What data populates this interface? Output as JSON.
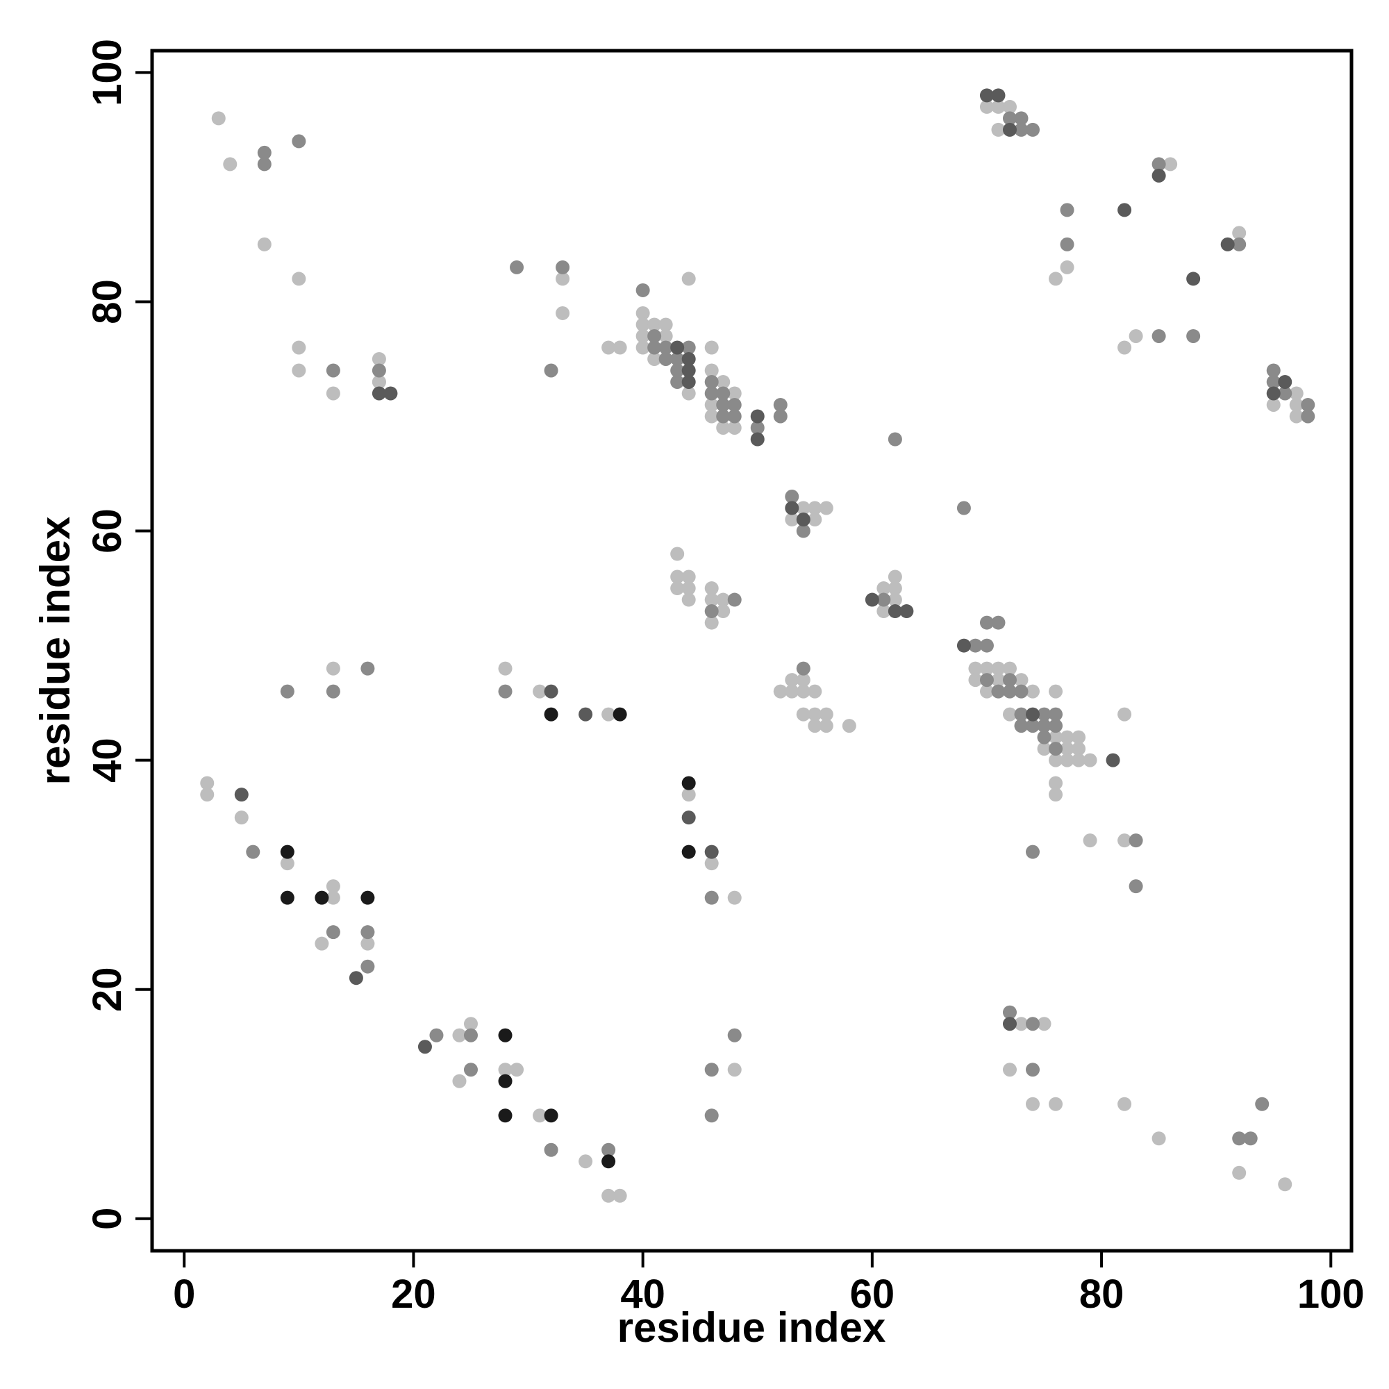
{
  "chart_data": {
    "type": "scatter",
    "x_label": "residue index",
    "y_label": "residue index",
    "xlim": [
      -2.8,
      101.8
    ],
    "ylim": [
      -2.8,
      101.9
    ],
    "xticks": [
      0,
      20,
      40,
      60,
      80,
      100
    ],
    "yticks": [
      0,
      20,
      40,
      60,
      80,
      100
    ],
    "series": [
      {
        "color": "#bdbdbd",
        "x": [
          3,
          4,
          7,
          10,
          10,
          10,
          13,
          17,
          17,
          33,
          33,
          37,
          38,
          44,
          40,
          40,
          41,
          42,
          40,
          42,
          40,
          41,
          44,
          46,
          46,
          47,
          48,
          46,
          46,
          47,
          48,
          54,
          55,
          56,
          53,
          55,
          43,
          43,
          44,
          43,
          44,
          44,
          46,
          46,
          47,
          47,
          46,
          61,
          62,
          62,
          62,
          61,
          69,
          70,
          71,
          72,
          69,
          71,
          73,
          70,
          74,
          76,
          72,
          76,
          77,
          78,
          75,
          77,
          78,
          76,
          77,
          78,
          79,
          82,
          76,
          76,
          79,
          82,
          52,
          53,
          53,
          54,
          54,
          55,
          54,
          55,
          56,
          55,
          56,
          58,
          70,
          71,
          72,
          71,
          86,
          92,
          77,
          76,
          82,
          83,
          97,
          95,
          97,
          97,
          13,
          28,
          31,
          37,
          2,
          2,
          5,
          9,
          13,
          13,
          17,
          12,
          16,
          44,
          46,
          48,
          24,
          25,
          24,
          28,
          29,
          31,
          35,
          37,
          38,
          48,
          73,
          75,
          72,
          74,
          76,
          82,
          85,
          92,
          96
        ],
        "y": [
          96,
          92,
          85,
          82,
          76,
          74,
          72,
          75,
          73,
          82,
          79,
          76,
          76,
          82,
          79,
          78,
          78,
          78,
          77,
          77,
          76,
          75,
          72,
          76,
          74,
          73,
          72,
          71,
          70,
          69,
          69,
          62,
          62,
          62,
          61,
          61,
          58,
          56,
          56,
          55,
          55,
          54,
          55,
          54,
          54,
          53,
          52,
          55,
          56,
          55,
          54,
          53,
          48,
          48,
          48,
          48,
          47,
          47,
          47,
          46,
          46,
          46,
          44,
          42,
          42,
          42,
          41,
          41,
          41,
          40,
          40,
          40,
          40,
          44,
          38,
          37,
          33,
          33,
          46,
          47,
          46,
          47,
          46,
          46,
          44,
          44,
          44,
          43,
          43,
          43,
          97,
          97,
          97,
          95,
          92,
          86,
          83,
          82,
          76,
          77,
          72,
          71,
          71,
          70,
          48,
          48,
          46,
          44,
          38,
          37,
          35,
          31,
          29,
          28,
          73,
          24,
          24,
          37,
          31,
          28,
          16,
          17,
          12,
          13,
          13,
          9,
          5,
          2,
          2,
          13,
          17,
          17,
          13,
          10,
          10,
          10,
          7,
          4,
          3
        ]
      },
      {
        "color": "#8a8a8a",
        "x": [
          7,
          7,
          10,
          13,
          17,
          29,
          33,
          32,
          40,
          41,
          41,
          42,
          44,
          42,
          43,
          43,
          43,
          46,
          46,
          47,
          47,
          48,
          47,
          48,
          50,
          52,
          52,
          62,
          53,
          54,
          68,
          48,
          46,
          61,
          69,
          70,
          70,
          71,
          70,
          72,
          71,
          72,
          73,
          73,
          75,
          76,
          73,
          74,
          75,
          76,
          75,
          76,
          74,
          83,
          83,
          54,
          72,
          73,
          73,
          74,
          85,
          92,
          77,
          77,
          85,
          88,
          95,
          95,
          96,
          98,
          98,
          9,
          13,
          16,
          28,
          6,
          13,
          16,
          16,
          46,
          22,
          25,
          25,
          32,
          37,
          46,
          48,
          46,
          72,
          74,
          74,
          92,
          93,
          94
        ],
        "y": [
          93,
          92,
          94,
          74,
          74,
          83,
          83,
          74,
          81,
          77,
          76,
          76,
          76,
          75,
          75,
          74,
          73,
          73,
          72,
          72,
          71,
          71,
          70,
          70,
          69,
          71,
          70,
          68,
          63,
          60,
          62,
          54,
          53,
          54,
          50,
          50,
          52,
          52,
          47,
          47,
          46,
          46,
          46,
          44,
          44,
          44,
          43,
          43,
          43,
          43,
          42,
          41,
          32,
          33,
          29,
          48,
          96,
          96,
          95,
          95,
          92,
          85,
          88,
          85,
          77,
          77,
          74,
          73,
          72,
          71,
          70,
          46,
          46,
          48,
          46,
          32,
          25,
          25,
          22,
          28,
          16,
          16,
          13,
          6,
          6,
          13,
          16,
          9,
          18,
          17,
          13,
          7,
          7,
          10
        ]
      },
      {
        "color": "#5a5a5a",
        "x": [
          17,
          18,
          43,
          44,
          44,
          44,
          50,
          50,
          53,
          54,
          60,
          62,
          63,
          68,
          74,
          81,
          70,
          71,
          72,
          85,
          82,
          91,
          88,
          96,
          95,
          32,
          35,
          5,
          15,
          44,
          46,
          21,
          72
        ],
        "y": [
          72,
          72,
          76,
          75,
          74,
          73,
          70,
          68,
          62,
          61,
          54,
          53,
          53,
          50,
          44,
          40,
          98,
          98,
          95,
          91,
          88,
          85,
          82,
          73,
          72,
          46,
          44,
          37,
          21,
          35,
          32,
          15,
          17
        ]
      },
      {
        "color": "#1a1a1a",
        "x": [
          32,
          38,
          9,
          9,
          12,
          16,
          44,
          44,
          28,
          28,
          28,
          32,
          37
        ],
        "y": [
          44,
          44,
          32,
          28,
          28,
          28,
          38,
          32,
          16,
          12,
          9,
          9,
          5
        ]
      }
    ]
  }
}
